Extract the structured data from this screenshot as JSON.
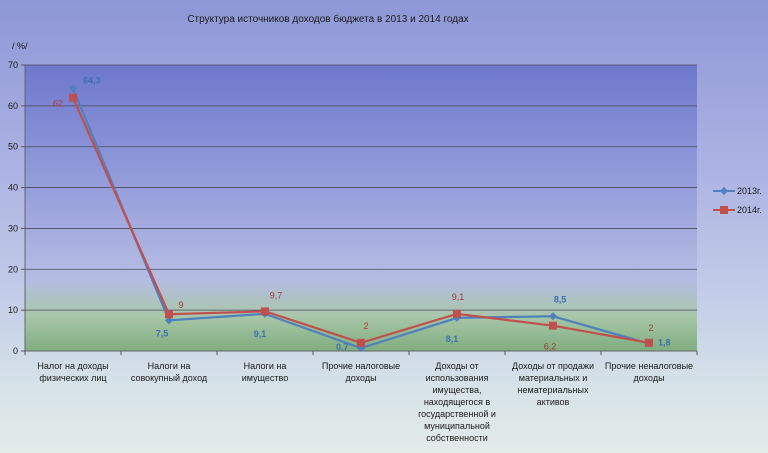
{
  "chart_data": {
    "type": "line",
    "title": "Структура источников доходов бюджета в 2013 и 2014 годах",
    "ylabel": "/ %/",
    "xlabel": "",
    "ylim": [
      0,
      70
    ],
    "yticks": [
      0,
      10,
      20,
      30,
      40,
      50,
      60,
      70
    ],
    "grid": true,
    "legend_position": "right",
    "categories": [
      [
        "Налог на доходы",
        "физических лиц"
      ],
      [
        "Налоги на",
        "совокупный  доход"
      ],
      [
        "Налоги на",
        "имущество"
      ],
      [
        "Прочие налоговые",
        "доходы"
      ],
      [
        "Доходы от",
        "использования",
        "имущества,",
        "находящегося  в",
        "государственной  и",
        "муниципальной",
        "собственности"
      ],
      [
        "Доходы от продажи",
        "материальных  и",
        "нематериальных",
        "активов"
      ],
      [
        "Прочие неналоговые",
        "доходы"
      ]
    ],
    "series": [
      {
        "name": "2013г.",
        "color": "#4f81bd",
        "marker": "diamond",
        "values": [
          64.3,
          7.5,
          9.1,
          0.7,
          8.1,
          8.5,
          1.8
        ],
        "labels": [
          "64,3",
          "7,5",
          "9,1",
          "0,7",
          "8,1",
          "8,5",
          "1,8"
        ]
      },
      {
        "name": "2014г.",
        "color": "#c0504d",
        "marker": "square",
        "values": [
          62,
          9,
          9.7,
          2,
          9.1,
          6.2,
          2
        ],
        "labels": [
          "62",
          "9",
          "9,7",
          "2",
          "9,1",
          "6,2",
          "2"
        ]
      }
    ]
  }
}
